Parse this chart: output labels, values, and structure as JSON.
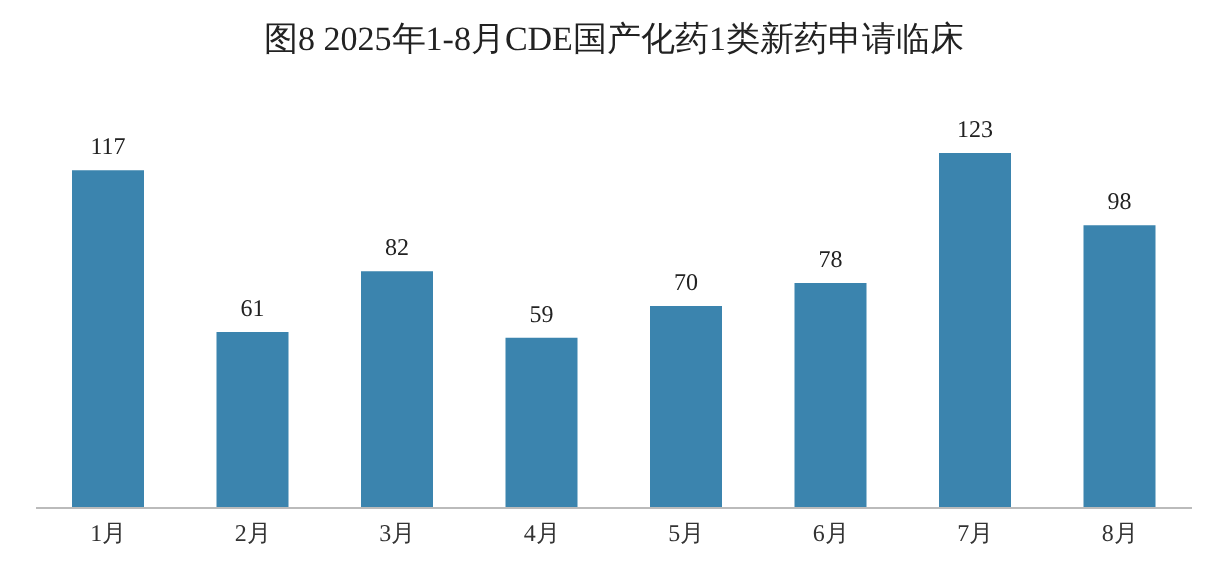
{
  "chart_data": {
    "type": "bar",
    "title": "图8 2025年1-8月CDE国产化药1类新药申请临床",
    "categories": [
      "1月",
      "2月",
      "3月",
      "4月",
      "5月",
      "6月",
      "7月",
      "8月"
    ],
    "values": [
      117,
      61,
      82,
      59,
      70,
      78,
      123,
      98
    ],
    "color": "#3b84ae",
    "data_labels": true,
    "grid": false,
    "legend": false
  }
}
